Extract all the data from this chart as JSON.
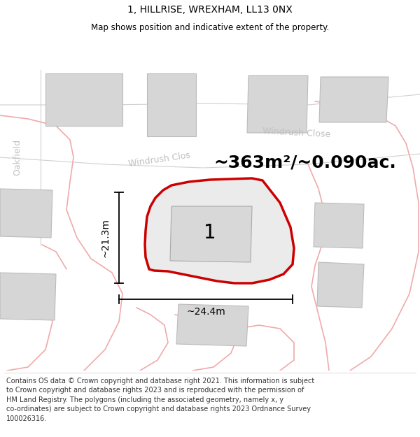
{
  "title": "1, HILLRISE, WREXHAM, LL13 0NX",
  "subtitle": "Map shows position and indicative extent of the property.",
  "footer_lines": [
    "Contains OS data © Crown copyright and database right 2021. This information is subject",
    "to Crown copyright and database rights 2023 and is reproduced with the permission of",
    "HM Land Registry. The polygons (including the associated geometry, namely x, y",
    "co-ordinates) are subject to Crown copyright and database rights 2023 Ordnance Survey",
    "100026316."
  ],
  "area_label": "~363m²/~0.090ac.",
  "dim_width_label": "~24.4m",
  "dim_height_label": "~21.3m",
  "plot_label": "1",
  "map_bg": "#f2f2f2",
  "road_fill": "#ffffff",
  "plot_fill": "#ebebeb",
  "plot_stroke": "#cc0000",
  "building_fill": "#d6d6d6",
  "building_stroke": "#bbbbbb",
  "pink_line_color": "#f0aaaa",
  "dim_line_color": "#000000",
  "street_label_color": "#c0c0c0",
  "title_color": "#000000",
  "footer_color": "#333333",
  "title_fontsize": 10,
  "subtitle_fontsize": 8.5,
  "footer_fontsize": 7.0,
  "area_fontsize": 18,
  "dim_fontsize": 10,
  "plot_label_fontsize": 20
}
